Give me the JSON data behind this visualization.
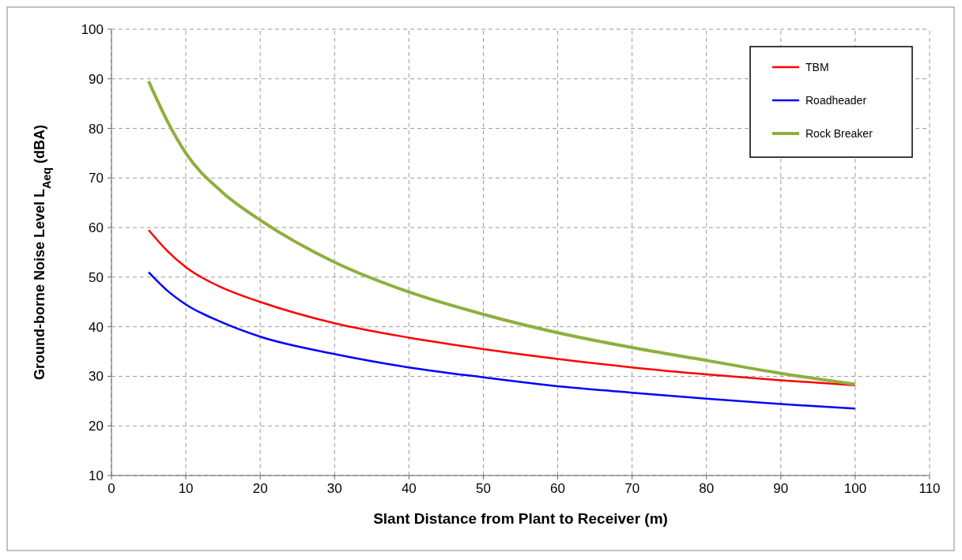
{
  "chart_data": {
    "type": "line",
    "xlabel": "Slant Distance  from Plant to Receiver (m)",
    "ylabel": "Ground-borne  Noise  Level L$_{Aeq}$ (dBA)",
    "x": [
      5,
      7.5,
      10,
      15,
      20,
      30,
      40,
      50,
      60,
      70,
      80,
      90,
      100
    ],
    "series": [
      {
        "name": "TBM",
        "color": "#ff0000",
        "values": [
          59.5,
          55.3,
          52,
          47.8,
          45,
          40.7,
          37.8,
          35.5,
          33.5,
          31.8,
          30.4,
          29.2,
          28.2
        ]
      },
      {
        "name": "Roadheader",
        "color": "#0000ff",
        "values": [
          51,
          47.3,
          44.5,
          40.8,
          38,
          34.5,
          31.8,
          29.8,
          28,
          26.7,
          25.5,
          24.4,
          23.5
        ]
      },
      {
        "name": "Rock Breaker",
        "color": "#8faf3c",
        "values": [
          89.5,
          81.5,
          75,
          67,
          61.5,
          53,
          47,
          42.5,
          38.8,
          35.8,
          33.2,
          30.6,
          28.4
        ]
      }
    ],
    "xlim": [
      0,
      110
    ],
    "xticks": [
      0,
      10,
      20,
      30,
      40,
      50,
      60,
      70,
      80,
      90,
      100,
      110
    ],
    "ylim": [
      10,
      100
    ],
    "yticks": [
      10,
      20,
      30,
      40,
      50,
      60,
      70,
      80,
      90,
      100
    ],
    "grid": true,
    "legend": "top right",
    "marker": "none",
    "line_style": "solid"
  }
}
